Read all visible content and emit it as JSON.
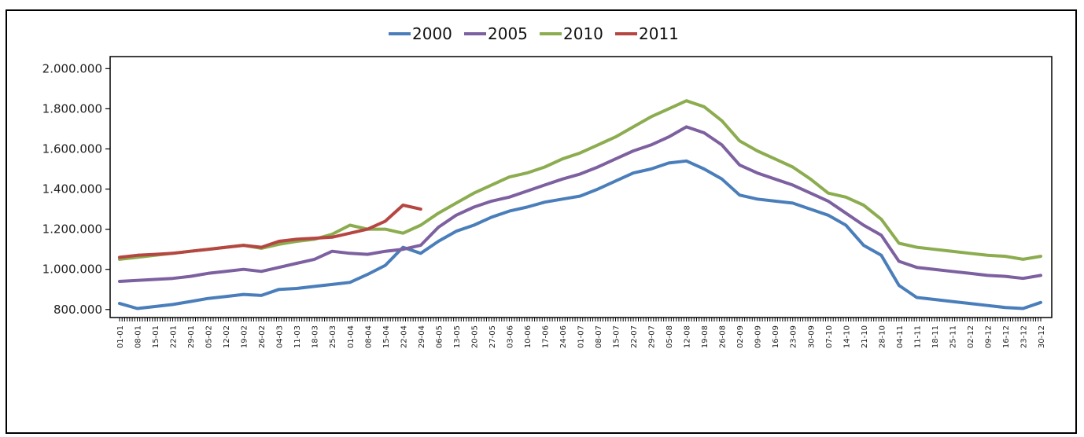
{
  "chart_data": {
    "type": "line",
    "title": "",
    "xlabel": "",
    "ylabel": "",
    "ylim": [
      760000,
      2060000
    ],
    "y_ticks": [
      "800.000",
      "1.000.000",
      "1.200.000",
      "1.400.000",
      "1.600.000",
      "1.800.000",
      "2.000.000"
    ],
    "y_tick_values": [
      800000,
      1000000,
      1200000,
      1400000,
      1600000,
      1800000,
      2000000
    ],
    "x_tick_labels": [
      "01-01",
      "08-01",
      "15-01",
      "22-01",
      "29-01",
      "05-02",
      "12-02",
      "19-02",
      "26-02",
      "04-03",
      "11-03",
      "18-03",
      "25-03",
      "01-04",
      "08-04",
      "15-04",
      "22-04",
      "29-04",
      "06-05",
      "13-05",
      "20-05",
      "27-05",
      "03-06",
      "10-06",
      "17-06",
      "24-06",
      "01-07",
      "08-07",
      "15-07",
      "22-07",
      "29-07",
      "05-08",
      "12-08",
      "19-08",
      "26-08",
      "02-09",
      "09-09",
      "16-09",
      "23-09",
      "30-09",
      "07-10",
      "14-10",
      "21-10",
      "28-10",
      "04-11",
      "11-11",
      "18-11",
      "25-11",
      "02-12",
      "09-12",
      "16-12",
      "23-12",
      "30-12"
    ],
    "legend_position": "top-center",
    "grid": false,
    "series": [
      {
        "name": "2000",
        "color": "#4a7ebb",
        "values": [
          830000,
          805000,
          815000,
          825000,
          840000,
          855000,
          865000,
          875000,
          870000,
          900000,
          905000,
          915000,
          925000,
          935000,
          975000,
          1020000,
          1110000,
          1080000,
          1140000,
          1190000,
          1220000,
          1260000,
          1290000,
          1310000,
          1335000,
          1350000,
          1365000,
          1400000,
          1440000,
          1480000,
          1500000,
          1530000,
          1540000,
          1500000,
          1450000,
          1370000,
          1350000,
          1340000,
          1330000,
          1300000,
          1270000,
          1220000,
          1120000,
          1070000,
          920000,
          860000,
          850000,
          840000,
          830000,
          820000,
          810000,
          805000,
          835000
        ]
      },
      {
        "name": "2005",
        "color": "#7d60a0",
        "values": [
          940000,
          945000,
          950000,
          955000,
          965000,
          980000,
          990000,
          1000000,
          990000,
          1010000,
          1030000,
          1050000,
          1090000,
          1080000,
          1075000,
          1090000,
          1100000,
          1120000,
          1210000,
          1270000,
          1310000,
          1340000,
          1360000,
          1390000,
          1420000,
          1450000,
          1475000,
          1510000,
          1550000,
          1590000,
          1620000,
          1660000,
          1710000,
          1680000,
          1620000,
          1520000,
          1480000,
          1450000,
          1420000,
          1380000,
          1340000,
          1280000,
          1220000,
          1170000,
          1040000,
          1010000,
          1000000,
          990000,
          980000,
          970000,
          965000,
          955000,
          970000
        ]
      },
      {
        "name": "2010",
        "color": "#8bac4f",
        "values": [
          1050000,
          1060000,
          1070000,
          1080000,
          1090000,
          1100000,
          1110000,
          1120000,
          1105000,
          1125000,
          1140000,
          1150000,
          1175000,
          1220000,
          1200000,
          1200000,
          1180000,
          1220000,
          1280000,
          1330000,
          1380000,
          1420000,
          1460000,
          1480000,
          1510000,
          1550000,
          1580000,
          1620000,
          1660000,
          1710000,
          1760000,
          1800000,
          1840000,
          1810000,
          1740000,
          1640000,
          1590000,
          1550000,
          1510000,
          1450000,
          1380000,
          1360000,
          1320000,
          1250000,
          1130000,
          1110000,
          1100000,
          1090000,
          1080000,
          1070000,
          1065000,
          1050000,
          1065000
        ]
      },
      {
        "name": "2011",
        "color": "#b54641",
        "values": [
          1060000,
          1070000,
          1075000,
          1080000,
          1090000,
          1100000,
          1110000,
          1120000,
          1110000,
          1140000,
          1150000,
          1155000,
          1160000,
          1180000,
          1200000,
          1240000,
          1320000,
          1300000,
          null,
          null,
          null,
          null,
          null,
          null,
          null,
          null,
          null,
          null,
          null,
          null,
          null,
          null,
          null,
          null,
          null,
          null,
          null,
          null,
          null,
          null,
          null,
          null,
          null,
          null,
          null,
          null,
          null,
          null,
          null,
          null,
          null,
          null,
          null
        ]
      }
    ]
  }
}
